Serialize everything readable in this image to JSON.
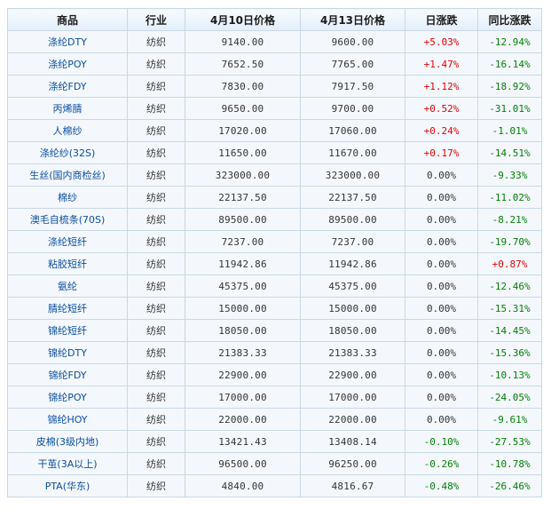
{
  "headers": [
    "商品",
    "行业",
    "4月10日价格",
    "4月13日价格",
    "日涨跌",
    "同比涨跌"
  ],
  "rows": [
    {
      "name": "涤纶DTY",
      "industry": "纺织",
      "p1": "9140.00",
      "p2": "9600.00",
      "daily": "+5.03%",
      "yoy": "-12.94%"
    },
    {
      "name": "涤纶POY",
      "industry": "纺织",
      "p1": "7652.50",
      "p2": "7765.00",
      "daily": "+1.47%",
      "yoy": "-16.14%"
    },
    {
      "name": "涤纶FDY",
      "industry": "纺织",
      "p1": "7830.00",
      "p2": "7917.50",
      "daily": "+1.12%",
      "yoy": "-18.92%"
    },
    {
      "name": "丙烯腈",
      "industry": "纺织",
      "p1": "9650.00",
      "p2": "9700.00",
      "daily": "+0.52%",
      "yoy": "-31.01%"
    },
    {
      "name": "人棉纱",
      "industry": "纺织",
      "p1": "17020.00",
      "p2": "17060.00",
      "daily": "+0.24%",
      "yoy": "-1.01%"
    },
    {
      "name": "涤纶纱(32S)",
      "industry": "纺织",
      "p1": "11650.00",
      "p2": "11670.00",
      "daily": "+0.17%",
      "yoy": "-14.51%"
    },
    {
      "name": "生丝(国内商检丝)",
      "industry": "纺织",
      "p1": "323000.00",
      "p2": "323000.00",
      "daily": "0.00%",
      "yoy": "-9.33%"
    },
    {
      "name": "棉纱",
      "industry": "纺织",
      "p1": "22137.50",
      "p2": "22137.50",
      "daily": "0.00%",
      "yoy": "-11.02%"
    },
    {
      "name": "澳毛自梳条(70S)",
      "industry": "纺织",
      "p1": "89500.00",
      "p2": "89500.00",
      "daily": "0.00%",
      "yoy": "-8.21%"
    },
    {
      "name": "涤纶短纤",
      "industry": "纺织",
      "p1": "7237.00",
      "p2": "7237.00",
      "daily": "0.00%",
      "yoy": "-19.70%"
    },
    {
      "name": "粘胶短纤",
      "industry": "纺织",
      "p1": "11942.86",
      "p2": "11942.86",
      "daily": "0.00%",
      "yoy": "+0.87%"
    },
    {
      "name": "氨纶",
      "industry": "纺织",
      "p1": "45375.00",
      "p2": "45375.00",
      "daily": "0.00%",
      "yoy": "-12.46%"
    },
    {
      "name": "腈纶短纤",
      "industry": "纺织",
      "p1": "15000.00",
      "p2": "15000.00",
      "daily": "0.00%",
      "yoy": "-15.31%"
    },
    {
      "name": "锦纶短纤",
      "industry": "纺织",
      "p1": "18050.00",
      "p2": "18050.00",
      "daily": "0.00%",
      "yoy": "-14.45%"
    },
    {
      "name": "锦纶DTY",
      "industry": "纺织",
      "p1": "21383.33",
      "p2": "21383.33",
      "daily": "0.00%",
      "yoy": "-15.36%"
    },
    {
      "name": "锦纶FDY",
      "industry": "纺织",
      "p1": "22900.00",
      "p2": "22900.00",
      "daily": "0.00%",
      "yoy": "-10.13%"
    },
    {
      "name": "锦纶POY",
      "industry": "纺织",
      "p1": "17000.00",
      "p2": "17000.00",
      "daily": "0.00%",
      "yoy": "-24.05%"
    },
    {
      "name": "锦纶HOY",
      "industry": "纺织",
      "p1": "22000.00",
      "p2": "22000.00",
      "daily": "0.00%",
      "yoy": "-9.61%"
    },
    {
      "name": "皮棉(3级内地)",
      "industry": "纺织",
      "p1": "13421.43",
      "p2": "13408.14",
      "daily": "-0.10%",
      "yoy": "-27.53%"
    },
    {
      "name": "干茧(3A以上)",
      "industry": "纺织",
      "p1": "96500.00",
      "p2": "96250.00",
      "daily": "-0.26%",
      "yoy": "-10.78%"
    },
    {
      "name": "PTA(华东)",
      "industry": "纺织",
      "p1": "4840.00",
      "p2": "4816.67",
      "daily": "-0.48%",
      "yoy": "-26.46%"
    }
  ],
  "colors": {
    "up": "#e60000",
    "down": "#007f00",
    "name": "#0a4ea0",
    "border": "#c9d7e6"
  }
}
